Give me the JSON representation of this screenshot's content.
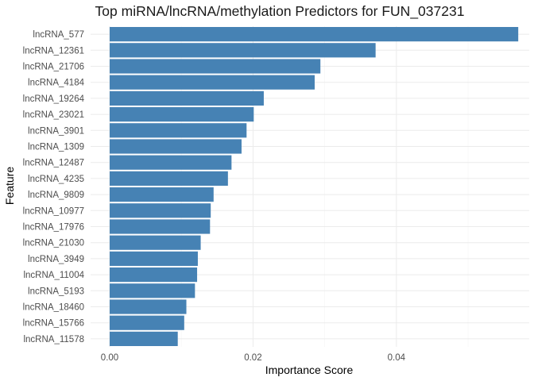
{
  "chart_data": {
    "type": "bar",
    "orientation": "horizontal",
    "title": "Top miRNA/lncRNA/methylation Predictors for FUN_037231",
    "xlabel": "Importance Score",
    "ylabel": "Feature",
    "xlim": [
      0,
      0.0582
    ],
    "x_ticks": [
      0.0,
      0.02,
      0.04
    ],
    "x_tick_labels": [
      "0.00",
      "0.02",
      "0.04"
    ],
    "grid": true,
    "bar_color": "#4682B4",
    "categories": [
      "lncRNA_577",
      "lncRNA_12361",
      "lncRNA_21706",
      "lncRNA_4184",
      "lncRNA_19264",
      "lncRNA_23021",
      "lncRNA_3901",
      "lncRNA_1309",
      "lncRNA_12487",
      "lncRNA_4235",
      "lncRNA_9809",
      "lncRNA_10977",
      "lncRNA_17976",
      "lncRNA_21030",
      "lncRNA_3949",
      "lncRNA_11004",
      "lncRNA_5193",
      "lncRNA_18460",
      "lncRNA_15766",
      "lncRNA_11578"
    ],
    "values": [
      0.057,
      0.0371,
      0.0294,
      0.0286,
      0.0215,
      0.0201,
      0.0191,
      0.0184,
      0.017,
      0.0165,
      0.0145,
      0.0141,
      0.014,
      0.0127,
      0.0123,
      0.0122,
      0.0119,
      0.0107,
      0.0104,
      0.0095
    ]
  }
}
